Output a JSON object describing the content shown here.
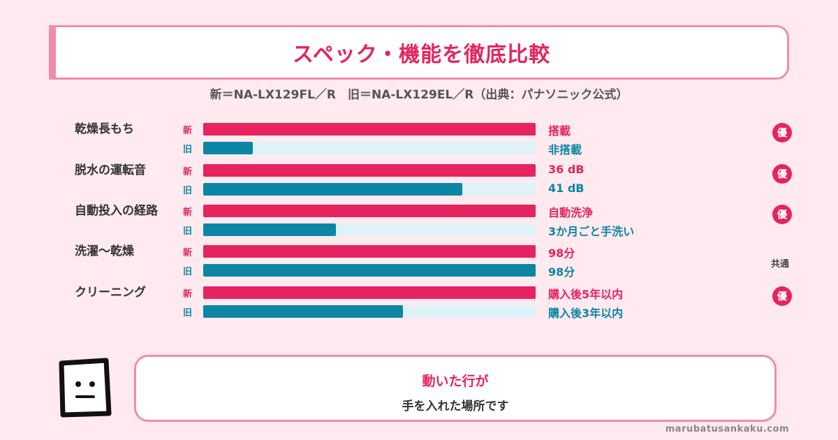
{
  "title": "スペック・機能を徹底比較",
  "subtitle": "新＝NA-LX129FL／R　旧＝NA-LX129EL／R（出典：パナソニック公式）",
  "tags": {
    "new": "新",
    "old": "旧"
  },
  "badge_text": "優",
  "colors": {
    "accent": "#e6245f",
    "new_series": "#e6245f",
    "old_series": "#0c86a4",
    "background": "#ffeaf0"
  },
  "chart_data": {
    "type": "bar",
    "categories": [
      "乾燥長もち",
      "脱水の運転音",
      "自動投入の経路",
      "洗濯～乾燥",
      "クリーニング"
    ],
    "series": [
      {
        "name": "新",
        "values": [
          1.0,
          1.0,
          1.0,
          1.0,
          1.0
        ],
        "labels": [
          "搭載",
          "36 dB",
          "自動洗浄",
          "98分",
          "購入後5年以内"
        ]
      },
      {
        "name": "旧",
        "values": [
          0.15,
          0.78,
          0.4,
          1.0,
          0.6
        ],
        "labels": [
          "非搭載",
          "41 dB",
          "3か月ごと手洗い",
          "98分",
          "購入後3年以内"
        ]
      }
    ],
    "verdicts": [
      "優",
      "優",
      "優",
      "共通",
      "優"
    ]
  },
  "speech": {
    "line1": "動いた行が",
    "line2": "手を入れた場所です"
  },
  "mascot_icon": "square-face-icon",
  "site": "marubatusankaku.com"
}
